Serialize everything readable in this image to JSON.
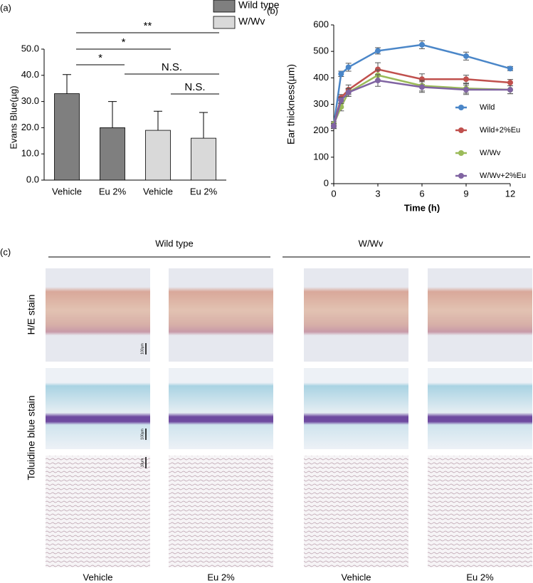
{
  "panel_labels": [
    "(a)",
    "(b)",
    "(c)"
  ],
  "chart_data": [
    {
      "type": "bar",
      "y_label": "Evans Blue(µg)",
      "categories": [
        "Vehicle",
        "Eu 2%",
        "Vehicle",
        "Eu 2%"
      ],
      "series": [
        {
          "name": "Wild type",
          "color": "#7f7f7f",
          "values": [
            33,
            20,
            null,
            null
          ],
          "errors": [
            7.3,
            10,
            null,
            null
          ]
        },
        {
          "name": "W/Wv",
          "color": "#d9d9d9",
          "values": [
            null,
            null,
            19,
            16
          ],
          "errors": [
            null,
            null,
            7.3,
            9.8
          ]
        }
      ],
      "ylim": [
        0,
        50
      ],
      "yticks": [
        {
          "value": 0,
          "label": "0.0"
        },
        {
          "value": 10,
          "label": "10.0"
        },
        {
          "value": 20,
          "label": "20.0"
        },
        {
          "value": 30,
          "label": "30.0"
        },
        {
          "value": 40,
          "label": "40.0"
        },
        {
          "value": 50,
          "label": "50.0"
        }
      ],
      "annotations": [
        "**",
        "*",
        "*",
        "N.S.",
        "N.S."
      ]
    },
    {
      "type": "line",
      "y_label": "Ear thickness(µm)",
      "x_label": "Time (h)",
      "x": [
        0,
        0.5,
        1,
        3,
        6,
        9,
        12
      ],
      "series": [
        {
          "name": "Wild",
          "color": "#4a86c8",
          "values": [
            220,
            415,
            440,
            502,
            525,
            482,
            435
          ],
          "errors": [
            10,
            10,
            15,
            12,
            15,
            15,
            8
          ]
        },
        {
          "name": "Wild+2%Eu",
          "color": "#c0504d",
          "values": [
            220,
            325,
            355,
            432,
            395,
            395,
            382
          ],
          "errors": [
            10,
            12,
            18,
            25,
            20,
            15,
            12
          ]
        },
        {
          "name": "W/Wv",
          "color": "#9bbb59",
          "values": [
            225,
            290,
            345,
            410,
            370,
            360,
            355
          ],
          "errors": [
            10,
            15,
            15,
            20,
            20,
            18,
            15
          ]
        },
        {
          "name": "W/Wv+2%Eu",
          "color": "#8064a2",
          "values": [
            218,
            315,
            345,
            390,
            365,
            355,
            355
          ],
          "errors": [
            10,
            12,
            15,
            22,
            20,
            18,
            15
          ]
        }
      ],
      "xlim": [
        0,
        12
      ],
      "xticks": [
        0,
        3,
        6,
        9,
        12
      ],
      "ylim": [
        0,
        600
      ],
      "yticks": [
        0,
        100,
        200,
        300,
        400,
        500,
        600
      ]
    }
  ],
  "histology": {
    "groups": [
      "Wild type",
      "W/Wv"
    ],
    "rows": [
      "H/E stain",
      "Toluidine blue stain"
    ],
    "columns": [
      "Vehicle",
      "Eu 2%",
      "Vehicle",
      "Eu 2%"
    ],
    "scale_bars": [
      "100µm",
      "100µm",
      "10µm"
    ]
  }
}
